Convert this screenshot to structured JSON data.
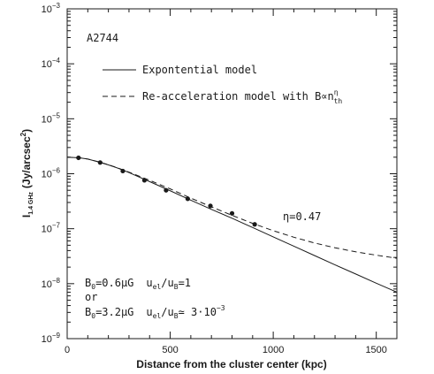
{
  "chart_data": {
    "type": "line",
    "panel_label": "A2744",
    "xlabel": "Distance from the cluster center (kpc)",
    "ylabel": "I1.4 GHz (Jy/arcsec²)",
    "ylabel_main": "I",
    "ylabel_sub": "1.4 GHz",
    "ylabel_unit": "(Jy/arcsec",
    "ylabel_unit_sup": "2",
    "ylabel_unit_close": ")",
    "xlim": [
      0,
      1600
    ],
    "ylim": [
      1e-09,
      0.001
    ],
    "yscale": "log",
    "x_ticks": [
      {
        "value": 0,
        "label": "0"
      },
      {
        "value": 500,
        "label": "500"
      },
      {
        "value": 1000,
        "label": "1000"
      },
      {
        "value": 1500,
        "label": "1500"
      }
    ],
    "y_ticks": [
      {
        "value": 1e-09,
        "base": "10",
        "exp": "−9"
      },
      {
        "value": 1e-08,
        "base": "10",
        "exp": "−8"
      },
      {
        "value": 1e-07,
        "base": "10",
        "exp": "−7"
      },
      {
        "value": 1e-06,
        "base": "10",
        "exp": "−6"
      },
      {
        "value": 1e-05,
        "base": "10",
        "exp": "−5"
      },
      {
        "value": 0.0001,
        "base": "10",
        "exp": "−4"
      },
      {
        "value": 0.001,
        "base": "10",
        "exp": "−3"
      }
    ],
    "legend": {
      "placement": "top-right",
      "solid_label": "Expontential model",
      "dashed_label_main": "Re-acceleration model with B∝n",
      "dashed_label_sup": "η",
      "dashed_label_sub": "th"
    },
    "eta_label": "η=0.47",
    "params": {
      "line1_b": "B",
      "line1_b_sub": "0",
      "line1_b_val": "=0.6μG",
      "line1_u": "u",
      "line1_u_sub1": "el",
      "line1_u_mid": "/u",
      "line1_u_sub2": "B",
      "line1_u_val": "=1",
      "or": "or",
      "line2_b": "B",
      "line2_b_sub": "0",
      "line2_b_val": "=3.2μG",
      "line2_u": "u",
      "line2_u_sub1": "el",
      "line2_u_mid": "/u",
      "line2_u_sub2": "B",
      "line2_u_val": "≃ 3·10",
      "line2_u_exp": "−3"
    },
    "observed_points": {
      "x": [
        55,
        160,
        270,
        375,
        480,
        585,
        695,
        800,
        910
      ],
      "y": [
        1.95e-06,
        1.6e-06,
        1.12e-06,
        7.6e-07,
        5e-07,
        3.5e-07,
        2.6e-07,
        1.9e-07,
        1.2e-07
      ]
    },
    "series": [
      {
        "name": "Expontential model",
        "style": "solid",
        "x": [
          0,
          60,
          100,
          150,
          200,
          250,
          300,
          400,
          500,
          600,
          700,
          800,
          900,
          1000,
          1100,
          1200,
          1300,
          1400,
          1500,
          1600
        ],
        "y": [
          2e-06,
          1.95e-06,
          1.85e-06,
          1.65e-06,
          1.45e-06,
          1.25e-06,
          1.05e-06,
          7.2e-07,
          4.9e-07,
          3.3e-07,
          2.25e-07,
          1.55e-07,
          1.05e-07,
          7.1e-08,
          4.8e-08,
          3.25e-08,
          2.2e-08,
          1.5e-08,
          1.02e-08,
          7e-09
        ]
      },
      {
        "name": "Re-acceleration model with B∝n^η_th",
        "style": "dashed",
        "x": [
          0,
          60,
          100,
          150,
          200,
          250,
          300,
          400,
          500,
          600,
          700,
          800,
          900,
          1000,
          1100,
          1200,
          1300,
          1400,
          1500,
          1600
        ],
        "y": [
          2e-06,
          1.95e-06,
          1.85e-06,
          1.66e-06,
          1.46e-06,
          1.26e-06,
          1.07e-06,
          7.6e-07,
          5.3e-07,
          3.6e-07,
          2.5e-07,
          1.75e-07,
          1.25e-07,
          9.2e-08,
          7e-08,
          5.5e-08,
          4.5e-08,
          3.8e-08,
          3.3e-08,
          2.9e-08
        ]
      }
    ],
    "colors": {
      "axis": "#1a1a1a",
      "lines": "#1a1a1a",
      "background": "#ffffff"
    },
    "grid": false
  }
}
